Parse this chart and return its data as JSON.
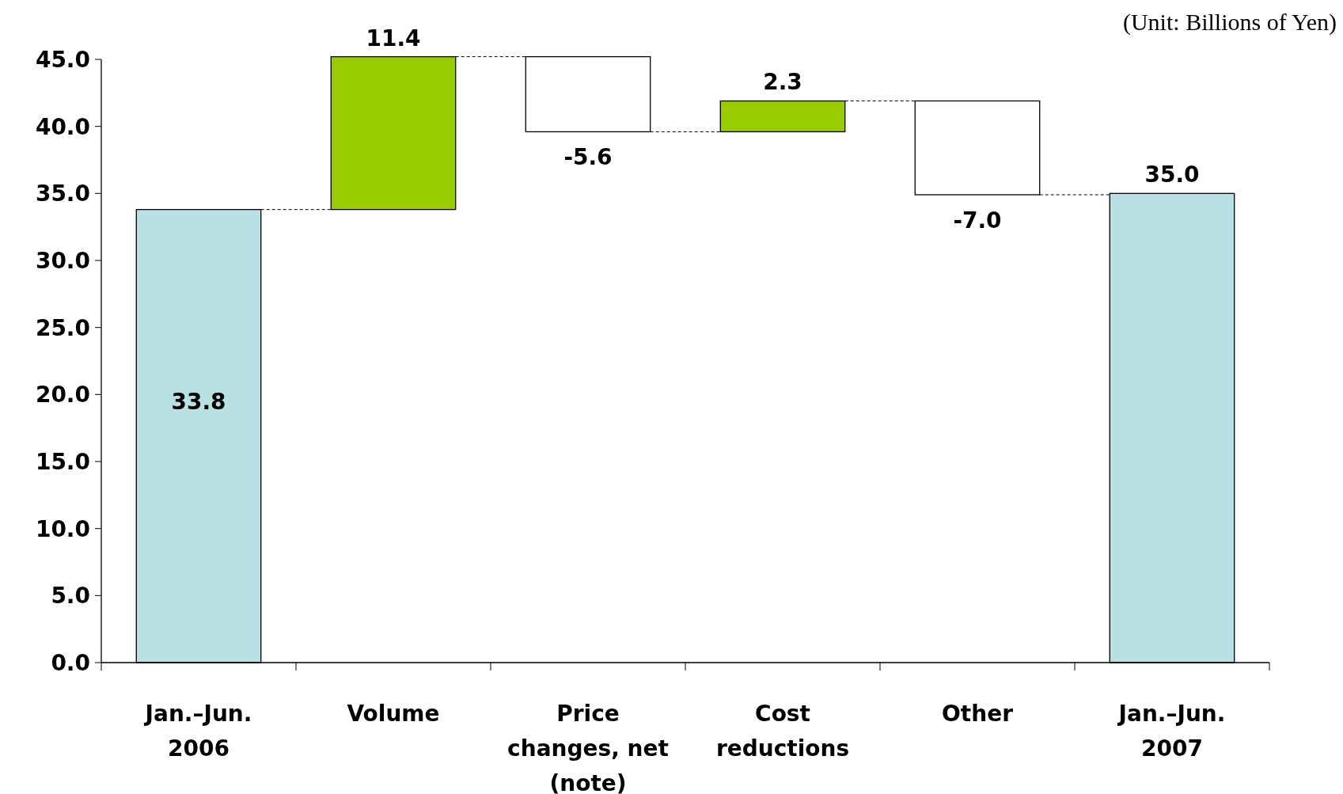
{
  "chart_data": {
    "type": "bar",
    "categories": [
      "Jan.–Jun.\n2006",
      "Volume",
      "Price\nchanges, net\n(note)",
      "Cost\nreductions",
      "Other",
      "Jan.–Jun.\n2007"
    ],
    "values": [
      33.8,
      11.4,
      -5.6,
      2.3,
      -7.0,
      35.0
    ],
    "base": [
      0,
      33.8,
      45.2,
      39.6,
      41.9,
      0
    ],
    "colors": [
      "#b9e0e3",
      "#99cc00",
      "#ffffff",
      "#99cc00",
      "#ffffff",
      "#b9e0e3"
    ],
    "value_labels": [
      "33.8",
      "11.4",
      "-5.6",
      "2.3",
      "-7.0",
      "35.0"
    ],
    "ylim": [
      0,
      45
    ],
    "yticks": [
      {
        "value": 0,
        "label": "0.0"
      },
      {
        "value": 5,
        "label": "5.0"
      },
      {
        "value": 10,
        "label": "10.0"
      },
      {
        "value": 15,
        "label": "15.0"
      },
      {
        "value": 20,
        "label": "20.0"
      },
      {
        "value": 25,
        "label": "25.0"
      },
      {
        "value": 30,
        "label": "30.0"
      },
      {
        "value": 35,
        "label": "35.0"
      },
      {
        "value": 40,
        "label": "40.0"
      },
      {
        "value": 45,
        "label": "45.0"
      }
    ],
    "annotations": [
      "(Unit: Billions of Yen)"
    ],
    "grid": false
  }
}
